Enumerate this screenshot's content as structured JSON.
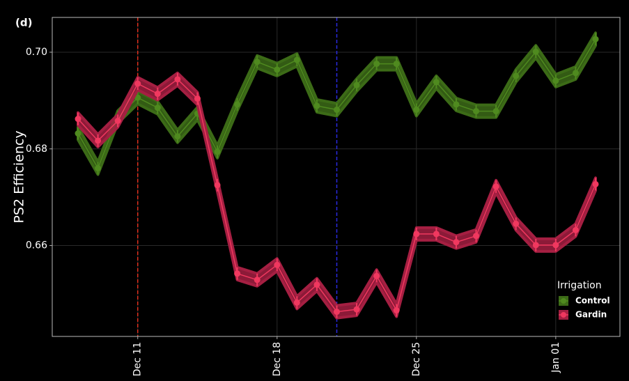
{
  "chart_data": {
    "type": "line",
    "panel_label": "(d)",
    "y_label": "PS2 Efficiency",
    "x": [
      "Dec 08",
      "Dec 09",
      "Dec 10",
      "Dec 11",
      "Dec 12",
      "Dec 13",
      "Dec 14",
      "Dec 15",
      "Dec 16",
      "Dec 17",
      "Dec 18",
      "Dec 19",
      "Dec 20",
      "Dec 21",
      "Dec 22",
      "Dec 23",
      "Dec 24",
      "Dec 25",
      "Dec 26",
      "Dec 27",
      "Dec 28",
      "Dec 29",
      "Dec 30",
      "Dec 31",
      "Jan 01",
      "Jan 02",
      "Jan 03"
    ],
    "series": [
      {
        "name": "Control",
        "color": "#4f8a1f",
        "band_color": "#3c6b17",
        "values": [
          0.6832,
          0.676,
          0.6866,
          0.6906,
          0.6885,
          0.6826,
          0.6873,
          0.6794,
          0.6892,
          0.698,
          0.6964,
          0.6984,
          0.6889,
          0.6881,
          0.6932,
          0.6976,
          0.6976,
          0.6881,
          0.6938,
          0.6892,
          0.6878,
          0.6878,
          0.6951,
          0.7001,
          0.6941,
          0.6957,
          0.7027
        ],
        "errors": [
          0.0013,
          0.0013,
          0.0013,
          0.0013,
          0.0013,
          0.0013,
          0.0013,
          0.0013,
          0.0013,
          0.0013,
          0.0013,
          0.0013,
          0.0013,
          0.0013,
          0.0013,
          0.0013,
          0.0013,
          0.0013,
          0.0013,
          0.0013,
          0.0013,
          0.0013,
          0.0013,
          0.0013,
          0.0013,
          0.0013,
          0.0013
        ]
      },
      {
        "name": "Gardin",
        "color": "#f0385f",
        "band_color": "#a51f42",
        "values": [
          0.6862,
          0.6817,
          0.6858,
          0.6935,
          0.6914,
          0.6944,
          0.6904,
          0.6725,
          0.6542,
          0.6529,
          0.656,
          0.6482,
          0.6519,
          0.6463,
          0.6468,
          0.6537,
          0.6466,
          0.6624,
          0.6624,
          0.6607,
          0.662,
          0.6722,
          0.6645,
          0.6601,
          0.6601,
          0.6632,
          0.6727
        ],
        "errors": [
          0.0013,
          0.0013,
          0.0013,
          0.0013,
          0.0013,
          0.0013,
          0.0013,
          0.0013,
          0.0013,
          0.0013,
          0.0013,
          0.0013,
          0.0013,
          0.0013,
          0.0013,
          0.0013,
          0.0013,
          0.0013,
          0.0013,
          0.0013,
          0.0013,
          0.0013,
          0.0013,
          0.0013,
          0.0013,
          0.0013,
          0.0013
        ]
      }
    ],
    "xticks": [
      "Dec 11",
      "Dec 18",
      "Dec 25",
      "Jan 01"
    ],
    "ylim": [
      0.6412,
      0.7072
    ],
    "yticks": [
      {
        "value": 0.66,
        "label": "0.66"
      },
      {
        "value": 0.68,
        "label": "0.68"
      },
      {
        "value": 0.7,
        "label": "0.70"
      }
    ],
    "vlines": [
      {
        "x": "Dec 11",
        "color": "#e0301e"
      },
      {
        "x": "Dec 21",
        "color": "#2a2ae0"
      }
    ],
    "grid": true,
    "legend": {
      "title": "Irrigation",
      "position": "lower right"
    }
  }
}
